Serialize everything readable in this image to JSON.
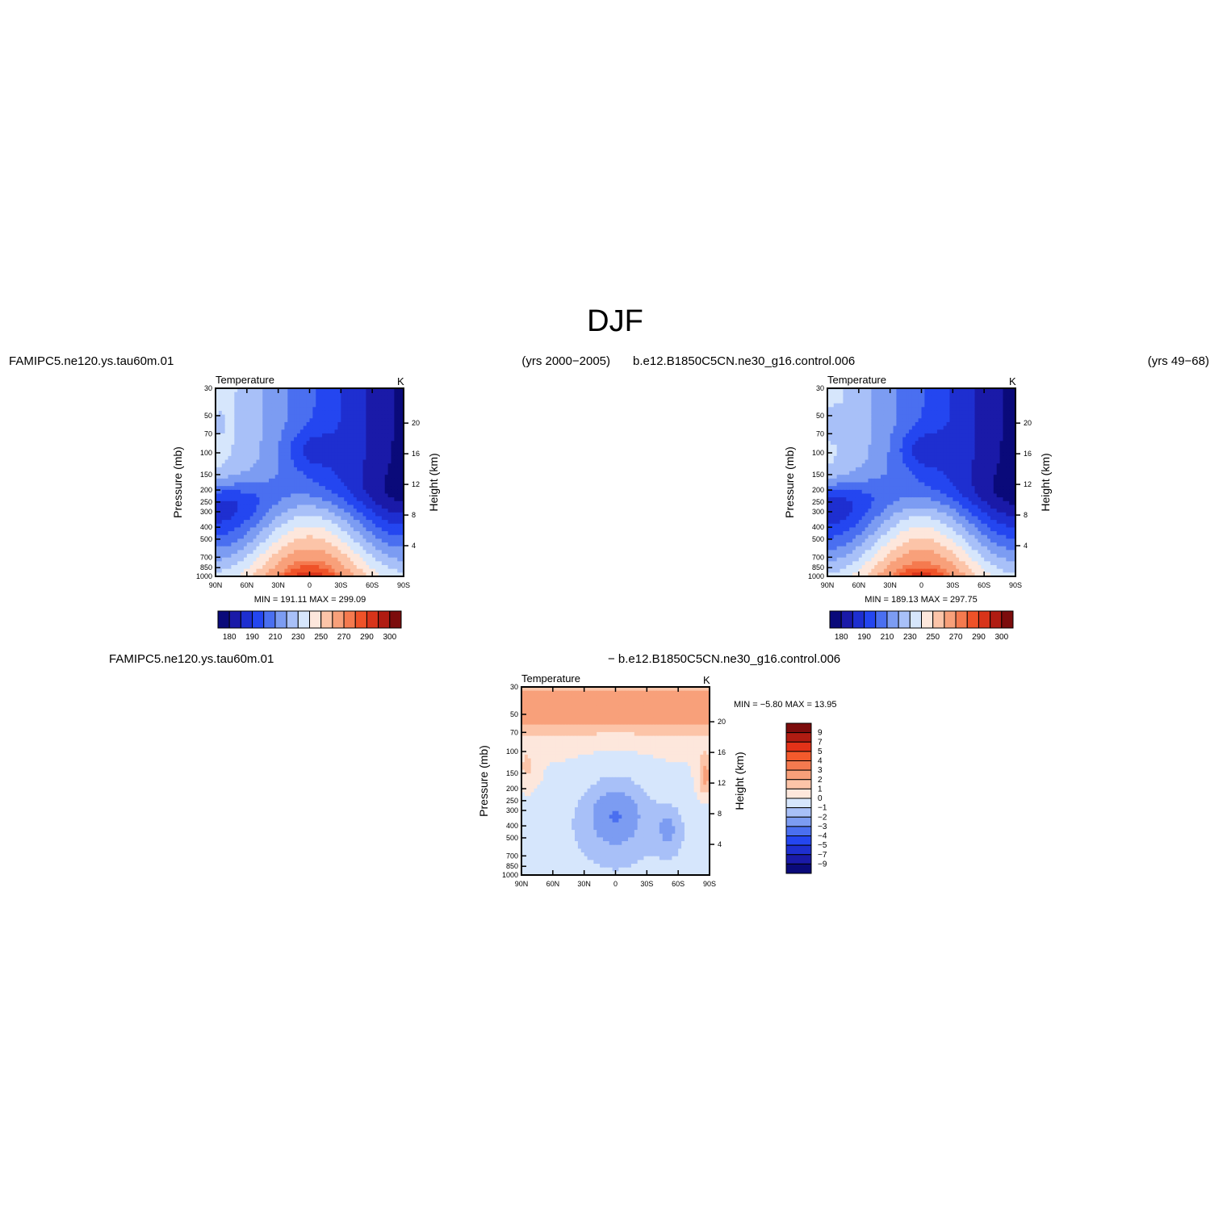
{
  "page": {
    "title": "DJF",
    "plot1_case": "FAMIPC5.ne120.ys.tau60m.01",
    "plot1_years": "(yrs 2000−2005)",
    "plot2_case": "b.e12.B1850C5CN.ne30_g16.control.006",
    "plot2_years": "(yrs 49−68)",
    "diff_case_a": "FAMIPC5.ne120.ys.tau60m.01",
    "diff_case_b": "− b.e12.B1850C5CN.ne30_g16.control.006"
  },
  "chart_data": [
    {
      "type": "heatmap",
      "title": "Temperature",
      "units": "K",
      "ylabel": "Pressure (mb)",
      "y2label": "Height (km)",
      "x_ticks": [
        "90N",
        "60N",
        "30N",
        "0",
        "30S",
        "60S",
        "90S"
      ],
      "y_ticks": [
        "30",
        "50",
        "70",
        "100",
        "150",
        "200",
        "250",
        "300",
        "400",
        "500",
        "700",
        "850",
        "1000"
      ],
      "y2_ticks": [
        "20",
        "16",
        "12",
        "8",
        "4"
      ],
      "stats": "MIN = 191.11   MAX = 299.09",
      "min": 191.11,
      "max": 299.09,
      "colorbar_labels": [
        "180",
        "190",
        "210",
        "230",
        "250",
        "270",
        "290",
        "300"
      ]
    },
    {
      "type": "heatmap",
      "title": "Temperature",
      "units": "K",
      "ylabel": "Pressure (mb)",
      "y2label": "Height (km)",
      "x_ticks": [
        "90N",
        "60N",
        "30N",
        "0",
        "30S",
        "60S",
        "90S"
      ],
      "y_ticks": [
        "30",
        "50",
        "70",
        "100",
        "150",
        "200",
        "250",
        "300",
        "400",
        "500",
        "700",
        "850",
        "1000"
      ],
      "y2_ticks": [
        "20",
        "16",
        "12",
        "8",
        "4"
      ],
      "stats": "MIN = 189.13   MAX = 297.75",
      "min": 189.13,
      "max": 297.75,
      "colorbar_labels": [
        "180",
        "190",
        "210",
        "230",
        "250",
        "270",
        "290",
        "300"
      ]
    },
    {
      "type": "heatmap",
      "title": "Temperature",
      "units": "K",
      "ylabel": "Pressure (mb)",
      "y2label": "Height (km)",
      "x_ticks": [
        "90N",
        "60N",
        "30N",
        "0",
        "30S",
        "60S",
        "90S"
      ],
      "y_ticks": [
        "30",
        "50",
        "70",
        "100",
        "150",
        "200",
        "250",
        "300",
        "400",
        "500",
        "700",
        "850",
        "1000"
      ],
      "y2_ticks": [
        "20",
        "16",
        "12",
        "8",
        "4"
      ],
      "stats": "MIN =   −5.80   MAX =   13.95",
      "min": -5.8,
      "max": 13.95,
      "colorbar_labels": [
        "9",
        "7",
        "5",
        "4",
        "3",
        "2",
        "1",
        "0",
        "−1",
        "−2",
        "−3",
        "−4",
        "−5",
        "−7",
        "−9"
      ]
    }
  ],
  "colors": {
    "temp_scale": [
      "#0a0a7a",
      "#1a1aa8",
      "#1e2fd0",
      "#2446f0",
      "#4a6ff0",
      "#7c9cf2",
      "#a8c0f8",
      "#d6e6fc",
      "#fde7dc",
      "#fcc4a8",
      "#f8a07a",
      "#f57a4f",
      "#ef5228",
      "#d8341a",
      "#b01c12",
      "#7c0c0c"
    ],
    "diff_scale": [
      "#7c0c0c",
      "#b01c12",
      "#e33218",
      "#f45a2c",
      "#f57a4f",
      "#f8a07a",
      "#fcc4a8",
      "#fde7dc",
      "#d6e6fc",
      "#a8c0f8",
      "#7c9cf2",
      "#4a6ff0",
      "#2446f0",
      "#1e2fd0",
      "#1a1aa8",
      "#0a0a7a"
    ]
  }
}
